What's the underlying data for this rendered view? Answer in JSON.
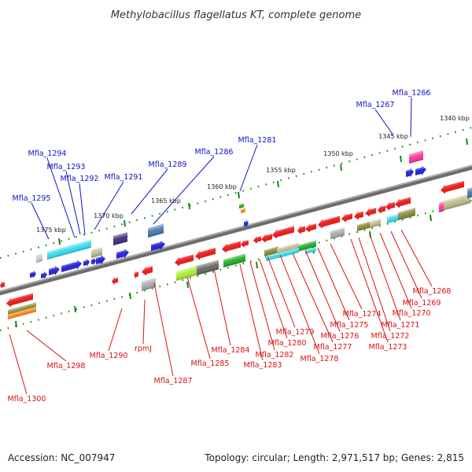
{
  "title": "Methylobacillus flagellatus KT, complete genome",
  "footer": {
    "accession": "Accession: NC_007947",
    "summary": "Topology: circular; Length: 2,971,517 bp; Genes: 2,815"
  },
  "colors": {
    "forward_label": "#1111cc",
    "reverse_label": "#dd1111",
    "forward_gene": "#1a1adb",
    "reverse_gene": "#ee1111",
    "backbone": "#888888",
    "tick": "#118811",
    "cog_colors": [
      "#33ddee",
      "#bbbb88",
      "#3a2a7a",
      "#4477aa",
      "#ff3399",
      "#aaee33",
      "#666666",
      "#22aa22",
      "#aaaaaa",
      "#888833",
      "#ff8811",
      "#cccccc"
    ]
  },
  "scale_labels": [
    "1340 kbp",
    "1345 kbp",
    "1350 kbp",
    "1355 kbp",
    "1360 kbp",
    "1365 kbp",
    "1370 kbp",
    "1375 kbp"
  ],
  "forward_genes": [
    "Mfla_1266",
    "Mfla_1267",
    "Mfla_1281",
    "Mfla_1286",
    "Mfla_1289",
    "Mfla_1291",
    "Mfla_1292",
    "Mfla_1293",
    "Mfla_1294",
    "Mfla_1295"
  ],
  "reverse_genes": [
    "Mfla_1268",
    "Mfla_1269",
    "Mfla_1270",
    "Mfla_1271",
    "Mfla_1272",
    "Mfla_1273",
    "Mfla_1274",
    "Mfla_1275",
    "Mfla_1276",
    "Mfla_1277",
    "Mfla_1278",
    "Mfla_1279",
    "Mfla_1280",
    "Mfla_1282",
    "Mfla_1283",
    "Mfla_1284",
    "Mfla_1285",
    "Mfla_1287",
    "Mfla_1290",
    "rpmJ",
    "Mfla_1298",
    "Mfla_1300"
  ]
}
